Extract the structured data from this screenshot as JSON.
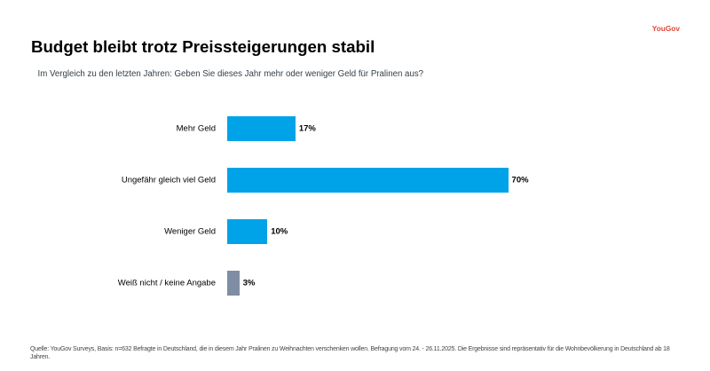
{
  "brand": {
    "logo_text": "YouGov",
    "logo_color": "#E0493C"
  },
  "header": {
    "title": "Budget bleibt trotz Preissteigerungen stabil",
    "subtitle": "Im Vergleich zu den letzten Jahren: Geben Sie dieses Jahr mehr oder weniger Geld für Pralinen aus?"
  },
  "chart_data": {
    "type": "bar",
    "orientation": "horizontal",
    "categories": [
      "Mehr Geld",
      "Ungefähr gleich viel Geld",
      "Weniger Geld",
      "Weiß nicht / keine Angabe"
    ],
    "values": [
      17,
      70,
      10,
      3
    ],
    "value_labels": [
      "17%",
      "70%",
      "10%",
      "3%"
    ],
    "bar_colors": [
      "#00A3E8",
      "#00A3E8",
      "#00A3E8",
      "#7E8DA3"
    ],
    "title": "Budget bleibt trotz Preissteigerungen stabil",
    "xlabel": "",
    "ylabel": "",
    "xlim": [
      0,
      100
    ],
    "grid": false,
    "legend": false,
    "axis_lines": false
  },
  "footer": {
    "source_text": "Quelle: YouGov Surveys, Basis: n=632 Befragte in Deutschland, die in diesem Jahr Pralinen zu Weihnachten verschenken wollen. Befragung vom 24. - 26.11.2025. Die Ergebnisse sind repräsentativ für die Wohnbevölkerung in Deutschland ab 18 Jahren."
  }
}
